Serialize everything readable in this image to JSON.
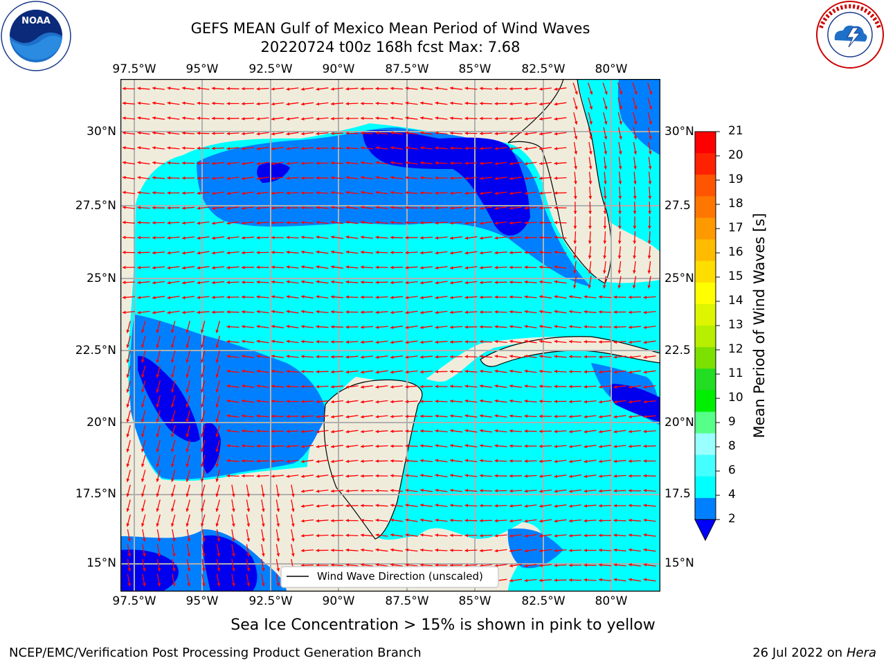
{
  "header": {
    "title_line1": "GEFS MEAN Gulf of Mexico Mean Period of Wind Waves",
    "title_line2": "20220724 t00z 168h fcst   Max: 7.68"
  },
  "logos": {
    "left": "noaa-logo",
    "right": "national-weather-service-logo"
  },
  "axes": {
    "lon_ticks": [
      "97.5°W",
      "95°W",
      "92.5°W",
      "90°W",
      "87.5°W",
      "85°W",
      "82.5°W",
      "80°W"
    ],
    "lat_ticks_left": [
      "30°N",
      "27.5°N",
      "25°N",
      "22.5°N",
      "20°N",
      "17.5°N",
      "15°N"
    ],
    "lat_ticks_right": [
      "30°N",
      "27.5",
      "25°N",
      "22.5",
      "20°N",
      "17.5",
      "15°N"
    ]
  },
  "legend": {
    "label": "Wind Wave Direction (unscaled)"
  },
  "colorbar": {
    "label": "Mean Period of Wind Waves [s]",
    "ticks": [
      "21",
      "20",
      "19",
      "18",
      "17",
      "16",
      "15",
      "14",
      "13",
      "12",
      "11",
      "10",
      "9",
      "8",
      "6",
      "4",
      "2"
    ],
    "colors": [
      "#ff0000",
      "#ff2200",
      "#ff5500",
      "#ff7700",
      "#ff9900",
      "#ffbb00",
      "#ffdd00",
      "#ffff00",
      "#ddf500",
      "#b8ee00",
      "#7ce000",
      "#22dd22",
      "#00ee00",
      "#55ff88",
      "#99ffff",
      "#44ffff",
      "#00ffff",
      "#0080ff"
    ],
    "extend_color": "#0000ff"
  },
  "notes": {
    "sea_ice": "Sea Ice Concentration > 15% is shown in pink to yellow"
  },
  "footer": {
    "left": "NCEP/EMC/Verification Post Processing Product Generation Branch",
    "right_date": "26 Jul 2022 on ",
    "right_host": "Hera"
  },
  "colors": {
    "land": "#f0ecdc",
    "wave_deep": "#0000ee",
    "wave_mid": "#0080ff",
    "wave_light": "#00ffff",
    "wave_pale": "#66ffff",
    "arrow": "#ff0000"
  }
}
